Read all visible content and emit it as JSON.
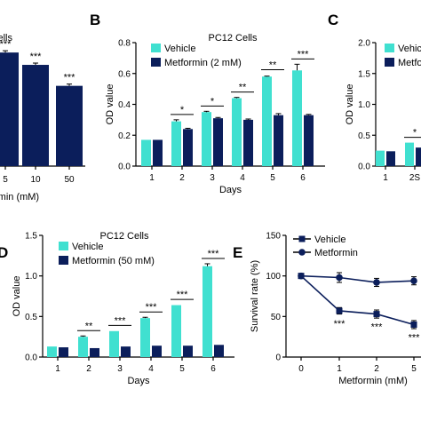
{
  "colors": {
    "vehicle": "#40E0D0",
    "metformin": "#0B1E5B",
    "axis": "#000000"
  },
  "chart_data": [
    {
      "panel": "A",
      "type": "bar",
      "title": "PC12 Cells",
      "title_visible": "ells",
      "xlabel": "rmin (mM)",
      "categories": [
        "5",
        "10",
        "50"
      ],
      "series": [
        {
          "name": "Metformin",
          "values": [
            0.92,
            0.82,
            0.65
          ]
        }
      ],
      "significance": [
        "***",
        "***",
        "***"
      ]
    },
    {
      "panel": "B",
      "type": "bar",
      "title": "PC12 Cells",
      "xlabel": "Days",
      "ylabel": "OD value",
      "ylim": [
        0,
        0.8
      ],
      "yticks": [
        "0.0",
        "0.2",
        "0.4",
        "0.6",
        "0.8"
      ],
      "categories": [
        "1",
        "2",
        "3",
        "4",
        "5",
        "6"
      ],
      "series": [
        {
          "name": "Vehicle",
          "values": [
            0.17,
            0.29,
            0.35,
            0.44,
            0.58,
            0.62
          ]
        },
        {
          "name": "Metformin (2 mM)",
          "values": [
            0.17,
            0.24,
            0.31,
            0.3,
            0.33,
            0.33
          ]
        }
      ],
      "errors": [
        [
          0,
          0.01,
          0.005,
          0.005,
          0.003,
          0.04
        ],
        [
          0,
          0.005,
          0.005,
          0.005,
          0.01,
          0.005
        ]
      ],
      "significance": [
        "",
        "*",
        "*",
        "**",
        "**",
        "***"
      ]
    },
    {
      "panel": "C",
      "type": "bar",
      "xlabel": "",
      "ylabel": "OD value",
      "ylim": [
        0,
        2.0
      ],
      "yticks": [
        "0.0",
        "0.5",
        "1.0",
        "1.5",
        "2.0"
      ],
      "categories": [
        "1",
        "2"
      ],
      "category_labels_visible": [
        "1",
        "2S"
      ],
      "series": [
        {
          "name": "Vehicle",
          "values": [
            0.25,
            0.38
          ]
        },
        {
          "name": "Metfor",
          "values": [
            0.24,
            0.3
          ]
        }
      ],
      "significance": [
        "",
        "*"
      ]
    },
    {
      "panel": "D",
      "type": "bar",
      "title": "PC12 Cells",
      "xlabel": "Days",
      "ylabel": "OD value",
      "ylim": [
        0,
        1.5
      ],
      "yticks": [
        "0.0",
        "0.5",
        "1.0",
        "1.5"
      ],
      "categories": [
        "1",
        "2",
        "3",
        "4",
        "5",
        "6"
      ],
      "series": [
        {
          "name": "Vehicle",
          "values": [
            0.13,
            0.25,
            0.32,
            0.48,
            0.64,
            1.12
          ]
        },
        {
          "name": "Metformin (50 mM)",
          "values": [
            0.12,
            0.11,
            0.13,
            0.14,
            0.14,
            0.15
          ]
        }
      ],
      "errors": [
        [
          0,
          0.01,
          0.005,
          0.01,
          0.005,
          0.03
        ],
        [
          0,
          0.005,
          0.005,
          0.005,
          0.005,
          0.005
        ]
      ],
      "significance": [
        "",
        "**",
        "***",
        "***",
        "***",
        "***"
      ]
    },
    {
      "panel": "E",
      "type": "line",
      "xlabel": "Metformin (mM)",
      "ylabel": "Survival rate (%)",
      "ylim": [
        0,
        150
      ],
      "yticks": [
        "0",
        "50",
        "100",
        "150"
      ],
      "x": [
        "0",
        "1",
        "2",
        "5"
      ],
      "series": [
        {
          "name": "Vehicle",
          "marker": "square",
          "values": [
            100,
            57,
            53,
            40
          ]
        },
        {
          "name": "Metformin",
          "marker": "circle",
          "values": [
            100,
            98,
            92,
            94
          ]
        }
      ],
      "errors": [
        [
          0,
          4,
          5,
          5
        ],
        [
          0,
          6,
          5,
          5
        ]
      ],
      "significance": [
        "",
        "***",
        "***",
        "***"
      ]
    }
  ],
  "panel_letters": [
    "B",
    "C",
    "D",
    "E"
  ]
}
